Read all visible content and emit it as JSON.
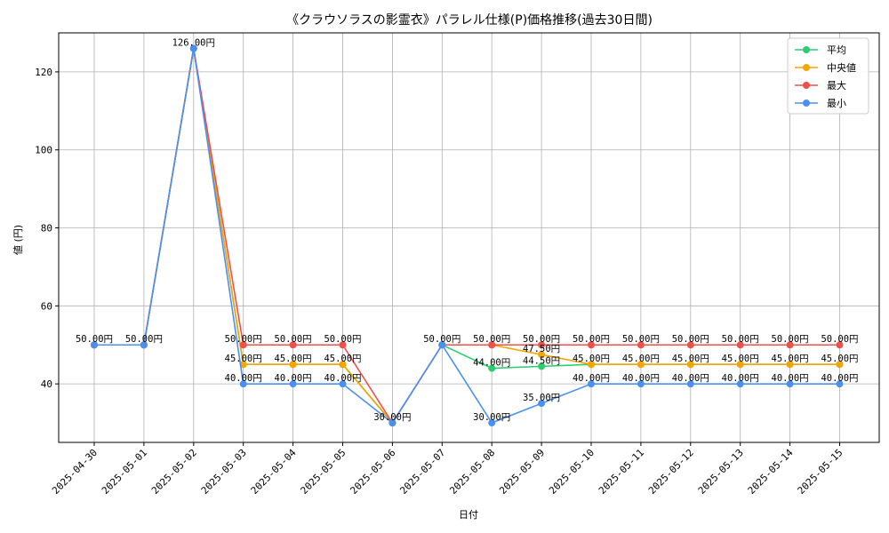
{
  "chart_data": {
    "type": "line",
    "title": "《クラウソラスの影霊衣》パラレル仕様(P)価格推移(過去30日間)",
    "xlabel": "日付",
    "ylabel": "値 (円)",
    "ylim": [
      25,
      130
    ],
    "yticks": [
      40,
      60,
      80,
      100,
      120
    ],
    "grid": true,
    "legend_position": "top-right",
    "categories": [
      "2025-04-30",
      "2025-05-01",
      "2025-05-02",
      "2025-05-03",
      "2025-05-04",
      "2025-05-05",
      "2025-05-06",
      "2025-05-07",
      "2025-05-08",
      "2025-05-09",
      "2025-05-10",
      "2025-05-11",
      "2025-05-12",
      "2025-05-13",
      "2025-05-14",
      "2025-05-15"
    ],
    "series": [
      {
        "name": "平均",
        "color": "#2ecc71",
        "values": [
          50,
          50,
          126,
          45,
          45,
          45,
          30,
          50,
          44,
          44.5,
          45,
          45,
          45,
          45,
          45,
          45
        ]
      },
      {
        "name": "中央値",
        "color": "#f5a500",
        "values": [
          50,
          50,
          126,
          45,
          45,
          45,
          30,
          50,
          50,
          47.5,
          45,
          45,
          45,
          45,
          45,
          45
        ]
      },
      {
        "name": "最大",
        "color": "#f0504a",
        "values": [
          50,
          50,
          126,
          50,
          50,
          50,
          30,
          50,
          50,
          50,
          50,
          50,
          50,
          50,
          50,
          50
        ]
      },
      {
        "name": "最小",
        "color": "#4a90f0",
        "values": [
          50,
          50,
          126,
          40,
          40,
          40,
          30,
          50,
          30,
          35,
          40,
          40,
          40,
          40,
          40,
          40
        ]
      }
    ],
    "data_labels": [
      {
        "text": "50.00円",
        "x": 0,
        "y": 50
      },
      {
        "text": "50.00円",
        "x": 1,
        "y": 50
      },
      {
        "text": "126.00円",
        "x": 2,
        "y": 126
      },
      {
        "text": "50.00円",
        "x": 3,
        "y": 50
      },
      {
        "text": "45.00円",
        "x": 3,
        "y": 45
      },
      {
        "text": "40.00円",
        "x": 3,
        "y": 40
      },
      {
        "text": "50.00円",
        "x": 4,
        "y": 50
      },
      {
        "text": "45.00円",
        "x": 4,
        "y": 45
      },
      {
        "text": "40.00円",
        "x": 4,
        "y": 40
      },
      {
        "text": "50.00円",
        "x": 5,
        "y": 50
      },
      {
        "text": "45.00円",
        "x": 5,
        "y": 45
      },
      {
        "text": "40.00円",
        "x": 5,
        "y": 40
      },
      {
        "text": "30.00円",
        "x": 6,
        "y": 30
      },
      {
        "text": "50.00円",
        "x": 7,
        "y": 50
      },
      {
        "text": "50.00円",
        "x": 8,
        "y": 50
      },
      {
        "text": "44.00円",
        "x": 8,
        "y": 44
      },
      {
        "text": "30.00円",
        "x": 8,
        "y": 30
      },
      {
        "text": "50.00円",
        "x": 9,
        "y": 50
      },
      {
        "text": "47.50円",
        "x": 9,
        "y": 47.5
      },
      {
        "text": "44.50円",
        "x": 9,
        "y": 44.5
      },
      {
        "text": "35.00円",
        "x": 9,
        "y": 35
      },
      {
        "text": "50.00円",
        "x": 10,
        "y": 50
      },
      {
        "text": "45.00円",
        "x": 10,
        "y": 45
      },
      {
        "text": "40.00円",
        "x": 10,
        "y": 40
      },
      {
        "text": "50.00円",
        "x": 11,
        "y": 50
      },
      {
        "text": "45.00円",
        "x": 11,
        "y": 45
      },
      {
        "text": "40.00円",
        "x": 11,
        "y": 40
      },
      {
        "text": "50.00円",
        "x": 12,
        "y": 50
      },
      {
        "text": "45.00円",
        "x": 12,
        "y": 45
      },
      {
        "text": "40.00円",
        "x": 12,
        "y": 40
      },
      {
        "text": "50.00円",
        "x": 13,
        "y": 50
      },
      {
        "text": "45.00円",
        "x": 13,
        "y": 45
      },
      {
        "text": "40.00円",
        "x": 13,
        "y": 40
      },
      {
        "text": "50.00円",
        "x": 14,
        "y": 50
      },
      {
        "text": "45.00円",
        "x": 14,
        "y": 45
      },
      {
        "text": "40.00円",
        "x": 14,
        "y": 40
      },
      {
        "text": "50.00円",
        "x": 15,
        "y": 50
      },
      {
        "text": "45.00円",
        "x": 15,
        "y": 45
      },
      {
        "text": "40.00円",
        "x": 15,
        "y": 40
      }
    ]
  }
}
